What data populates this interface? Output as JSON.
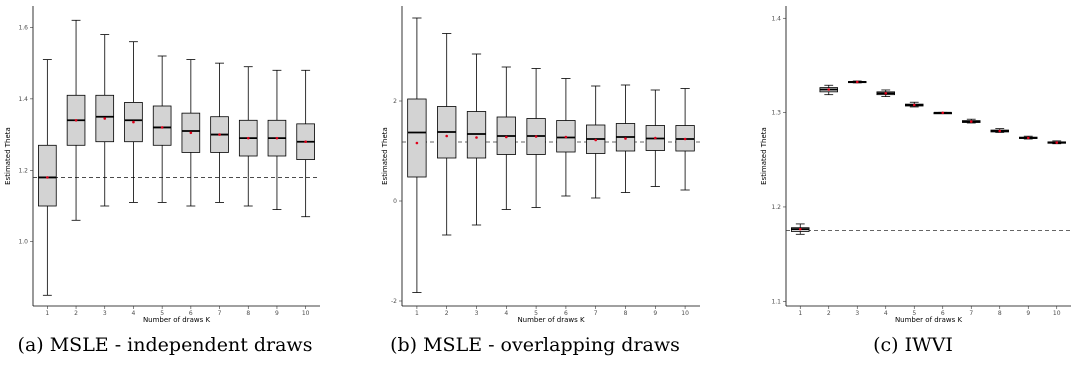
{
  "chart_data": [
    {
      "type": "box",
      "caption": "(a) MSLE - independent draws",
      "xlabel": "Number of draws K",
      "ylabel": "Estimated Theta",
      "categories": [
        "1",
        "2",
        "3",
        "4",
        "5",
        "6",
        "7",
        "8",
        "9",
        "10"
      ],
      "ylim": [
        0.82,
        1.66
      ],
      "yticks": [
        "1.0",
        "1.2",
        "1.4",
        "1.6"
      ],
      "reference_line": 1.18,
      "boxes": [
        {
          "min": 0.85,
          "q1": 1.1,
          "median": 1.18,
          "q3": 1.27,
          "max": 1.51,
          "mean": 1.18
        },
        {
          "min": 1.06,
          "q1": 1.27,
          "median": 1.34,
          "q3": 1.41,
          "max": 1.62,
          "mean": 1.34
        },
        {
          "min": 1.1,
          "q1": 1.28,
          "median": 1.35,
          "q3": 1.41,
          "max": 1.58,
          "mean": 1.345
        },
        {
          "min": 1.11,
          "q1": 1.28,
          "median": 1.34,
          "q3": 1.39,
          "max": 1.56,
          "mean": 1.335
        },
        {
          "min": 1.11,
          "q1": 1.27,
          "median": 1.32,
          "q3": 1.38,
          "max": 1.52,
          "mean": 1.32
        },
        {
          "min": 1.1,
          "q1": 1.25,
          "median": 1.31,
          "q3": 1.36,
          "max": 1.51,
          "mean": 1.305
        },
        {
          "min": 1.11,
          "q1": 1.25,
          "median": 1.3,
          "q3": 1.35,
          "max": 1.5,
          "mean": 1.3
        },
        {
          "min": 1.1,
          "q1": 1.24,
          "median": 1.29,
          "q3": 1.34,
          "max": 1.49,
          "mean": 1.29
        },
        {
          "min": 1.09,
          "q1": 1.24,
          "median": 1.29,
          "q3": 1.34,
          "max": 1.48,
          "mean": 1.29
        },
        {
          "min": 1.07,
          "q1": 1.23,
          "median": 1.28,
          "q3": 1.33,
          "max": 1.48,
          "mean": 1.28
        }
      ]
    },
    {
      "type": "box",
      "caption": "(b) MSLE - overlapping draws",
      "xlabel": "Number of draws K",
      "ylabel": "Estimated Theta",
      "categories": [
        "1",
        "2",
        "3",
        "4",
        "5",
        "6",
        "7",
        "8",
        "9",
        "10"
      ],
      "ylim": [
        -2.1,
        3.9
      ],
      "yticks": [
        "-2",
        "0",
        "2"
      ],
      "reference_line": 1.18,
      "boxes": [
        {
          "min": -1.83,
          "q1": 0.48,
          "median": 1.37,
          "q3": 2.04,
          "max": 3.66,
          "mean": 1.16
        },
        {
          "min": -0.68,
          "q1": 0.86,
          "median": 1.38,
          "q3": 1.89,
          "max": 3.35,
          "mean": 1.3
        },
        {
          "min": -0.48,
          "q1": 0.86,
          "median": 1.34,
          "q3": 1.79,
          "max": 2.94,
          "mean": 1.27
        },
        {
          "min": -0.17,
          "q1": 0.93,
          "median": 1.3,
          "q3": 1.68,
          "max": 2.68,
          "mean": 1.28
        },
        {
          "min": -0.13,
          "q1": 0.93,
          "median": 1.3,
          "q3": 1.65,
          "max": 2.65,
          "mean": 1.29
        },
        {
          "min": 0.1,
          "q1": 0.98,
          "median": 1.27,
          "q3": 1.61,
          "max": 2.45,
          "mean": 1.28
        },
        {
          "min": 0.06,
          "q1": 0.95,
          "median": 1.24,
          "q3": 1.52,
          "max": 2.3,
          "mean": 1.22
        },
        {
          "min": 0.17,
          "q1": 1.0,
          "median": 1.28,
          "q3": 1.55,
          "max": 2.32,
          "mean": 1.25
        },
        {
          "min": 0.29,
          "q1": 1.01,
          "median": 1.25,
          "q3": 1.51,
          "max": 2.22,
          "mean": 1.26
        },
        {
          "min": 0.22,
          "q1": 1.0,
          "median": 1.24,
          "q3": 1.51,
          "max": 2.25,
          "mean": 1.24
        }
      ]
    },
    {
      "type": "box",
      "caption": "(c) IWVI",
      "xlabel": "Number of draws K",
      "ylabel": "Estimated Theta",
      "categories": [
        "1",
        "2",
        "3",
        "4",
        "5",
        "6",
        "7",
        "8",
        "9",
        "10"
      ],
      "ylim": [
        1.095,
        1.413
      ],
      "yticks": [
        "1.1",
        "1.2",
        "1.3",
        "1.4"
      ],
      "reference_line": 1.175,
      "boxes": [
        {
          "min": 1.171,
          "q1": 1.174,
          "median": 1.1765,
          "q3": 1.178,
          "max": 1.182,
          "mean": 1.1765
        },
        {
          "min": 1.319,
          "q1": 1.322,
          "median": 1.3245,
          "q3": 1.3265,
          "max": 1.329,
          "mean": 1.3245
        },
        {
          "min": 1.3315,
          "q1": 1.332,
          "median": 1.3325,
          "q3": 1.333,
          "max": 1.3335,
          "mean": 1.3325
        },
        {
          "min": 1.317,
          "q1": 1.319,
          "median": 1.3205,
          "q3": 1.322,
          "max": 1.324,
          "mean": 1.3205
        },
        {
          "min": 1.306,
          "q1": 1.307,
          "median": 1.308,
          "q3": 1.309,
          "max": 1.311,
          "mean": 1.308
        },
        {
          "min": 1.299,
          "q1": 1.2995,
          "median": 1.2998,
          "q3": 1.3,
          "max": 1.3003,
          "mean": 1.2998
        },
        {
          "min": 1.289,
          "q1": 1.2895,
          "median": 1.2905,
          "q3": 1.2915,
          "max": 1.293,
          "mean": 1.2905
        },
        {
          "min": 1.279,
          "q1": 1.2795,
          "median": 1.2805,
          "q3": 1.2815,
          "max": 1.283,
          "mean": 1.2805
        },
        {
          "min": 1.272,
          "q1": 1.2725,
          "median": 1.2732,
          "q3": 1.274,
          "max": 1.275,
          "mean": 1.2732
        },
        {
          "min": 1.267,
          "q1": 1.2675,
          "median": 1.2682,
          "q3": 1.269,
          "max": 1.27,
          "mean": 1.2682
        }
      ]
    }
  ]
}
